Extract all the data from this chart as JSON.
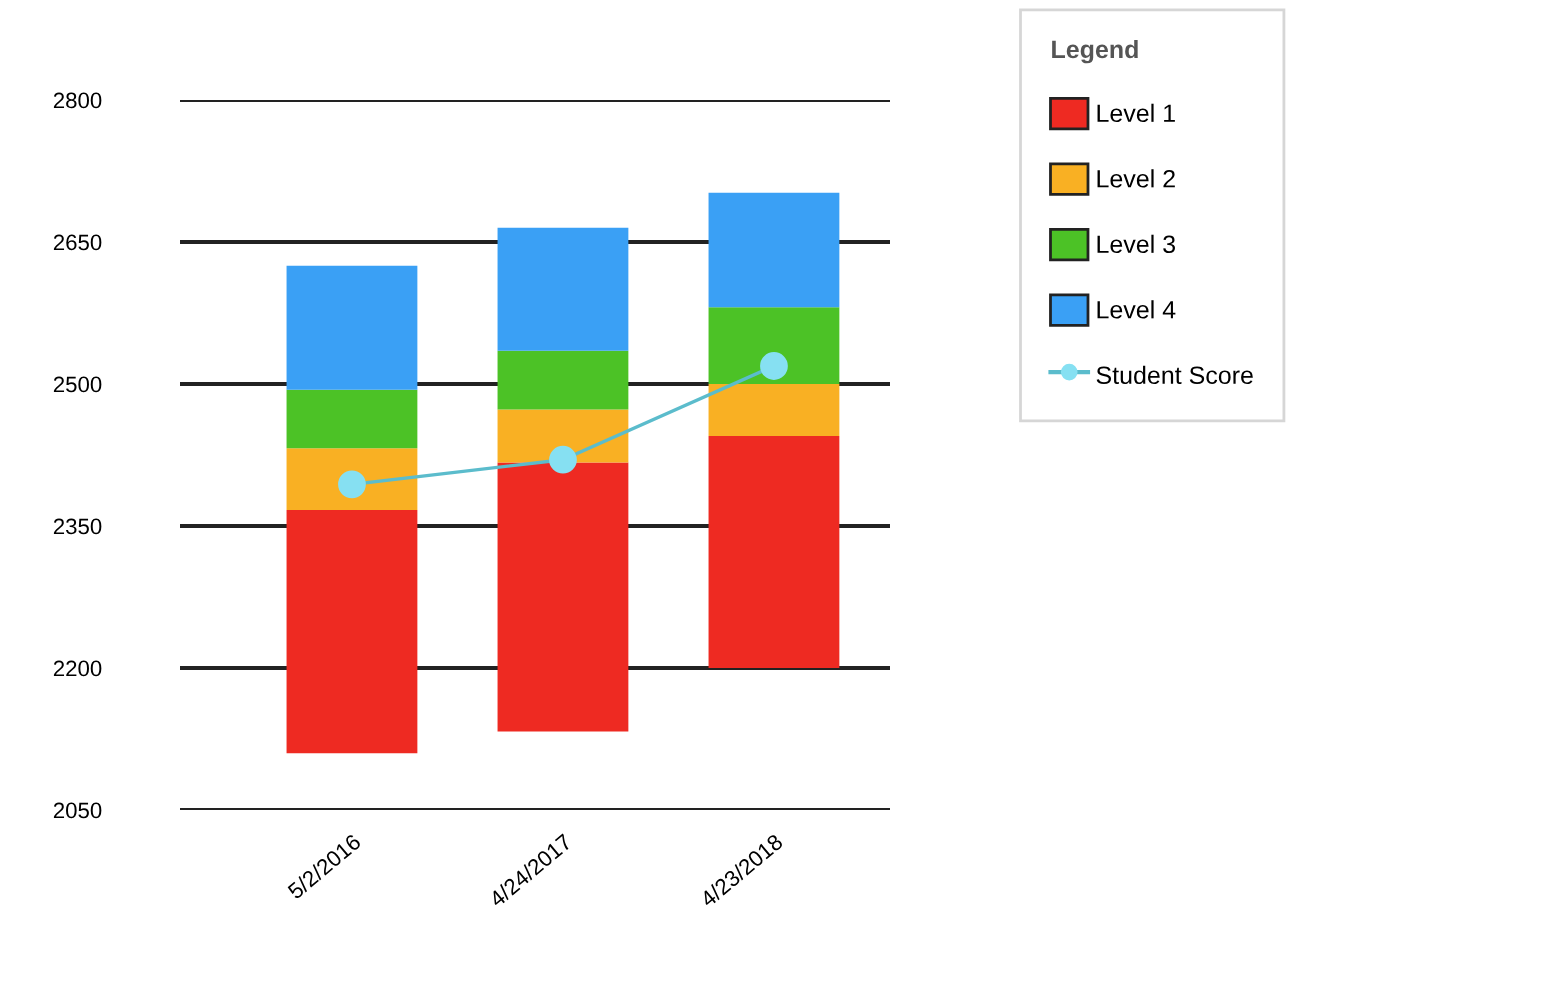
{
  "chart_data": {
    "type": "bar",
    "legend_title": "Legend",
    "legend": "right",
    "grid": "y",
    "categories": [
      "5/2/2016",
      "4/24/2017",
      "4/23/2018"
    ],
    "series": [
      {
        "name": "Level 1",
        "color": "#ee2a22",
        "base": [
          2110,
          2133,
          2200
        ],
        "values": [
          257,
          284,
          245
        ]
      },
      {
        "name": "Level 2",
        "color": "#f9b023",
        "base": [
          2367,
          2417,
          2445
        ],
        "values": [
          65,
          56,
          55
        ]
      },
      {
        "name": "Level 3",
        "color": "#4cc226",
        "base": [
          2432,
          2473,
          2500
        ],
        "values": [
          62,
          62,
          81
        ]
      },
      {
        "name": "Level 4",
        "color": "#3aa0f5",
        "base": [
          2494,
          2535,
          2581
        ],
        "values": [
          131,
          130,
          121
        ]
      },
      {
        "name": "Student Score",
        "type": "line",
        "color": "#5bbccc",
        "marker": "circle",
        "values": [
          2394,
          2420,
          2519
        ]
      }
    ],
    "ylim": [
      2050,
      2800
    ],
    "yticks": [
      2050,
      2200,
      2350,
      2500,
      2650,
      2800
    ]
  }
}
